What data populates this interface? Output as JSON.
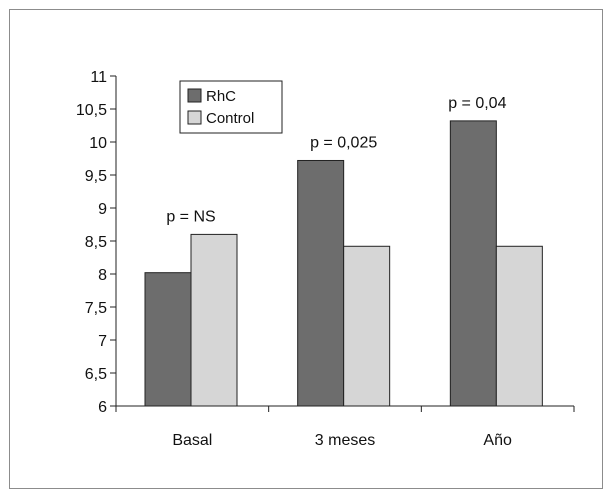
{
  "chart_data": {
    "type": "bar",
    "title": "",
    "xlabel": "",
    "ylabel": "",
    "categories": [
      "Basal",
      "3 meses",
      "Año"
    ],
    "series": [
      {
        "name": "RhC",
        "values": [
          8.02,
          9.72,
          10.32
        ],
        "color": "#6d6d6d"
      },
      {
        "name": "Control",
        "values": [
          8.6,
          8.42,
          8.42
        ],
        "color": "#d6d6d6"
      }
    ],
    "ylim": [
      6,
      11
    ],
    "yticks": [
      6,
      6.5,
      7,
      7.5,
      8,
      8.5,
      9,
      9.5,
      10,
      10.5,
      11
    ],
    "ytick_labels": [
      "6",
      "6,5",
      "7",
      "7,5",
      "8",
      "8,5",
      "9",
      "9,5",
      "10",
      "10,5",
      "11"
    ],
    "annotations": [
      "p = NS",
      "p = 0,025",
      "p = 0,04"
    ],
    "legend_position": "top-left",
    "grid": false
  }
}
